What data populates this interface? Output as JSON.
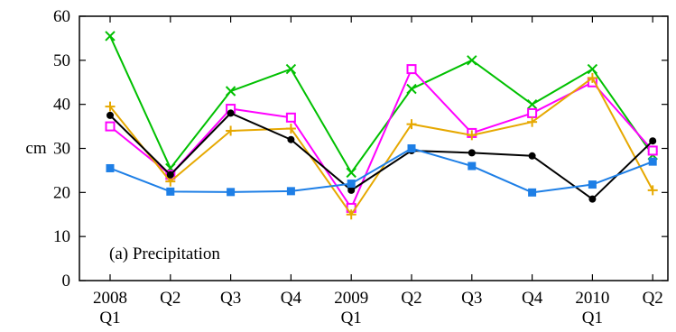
{
  "chart_data": {
    "type": "line",
    "title": "",
    "xlabel": "",
    "ylabel": "cm",
    "annotation": "(a) Precipitation",
    "ylim": [
      0,
      60
    ],
    "yticks": [
      "0",
      "10",
      "20",
      "30",
      "40",
      "50",
      "60"
    ],
    "categories": [
      [
        "2008",
        "Q1"
      ],
      [
        "Q2"
      ],
      [
        "Q3"
      ],
      [
        "Q4"
      ],
      [
        "2009",
        "Q1"
      ],
      [
        "Q2"
      ],
      [
        "Q3"
      ],
      [
        "Q4"
      ],
      [
        "2010",
        "Q1"
      ],
      [
        "Q2"
      ]
    ],
    "grid": false,
    "legend": "none",
    "series": [
      {
        "color": "#00c000",
        "marker": "x",
        "values": [
          55.5,
          25.5,
          43,
          48,
          24.5,
          43.5,
          50,
          40,
          48,
          28.5
        ]
      },
      {
        "color": "#ff00ff",
        "marker": "open-square",
        "values": [
          35,
          24,
          39,
          37,
          16.5,
          48,
          33.5,
          38,
          45,
          29.5
        ]
      },
      {
        "color": "#e6a800",
        "marker": "plus",
        "values": [
          39.5,
          22.5,
          34,
          34.5,
          15,
          35.5,
          33,
          36,
          46,
          20.5
        ]
      },
      {
        "color": "#000000",
        "marker": "filled-circle",
        "values": [
          37.5,
          24,
          38,
          32,
          20.5,
          29.5,
          29,
          28.3,
          18.5,
          31.7
        ]
      },
      {
        "color": "#1e7fe6",
        "marker": "filled-square",
        "values": [
          25.5,
          20.2,
          20.1,
          20.3,
          22,
          30,
          26,
          20,
          21.8,
          27
        ]
      }
    ]
  }
}
